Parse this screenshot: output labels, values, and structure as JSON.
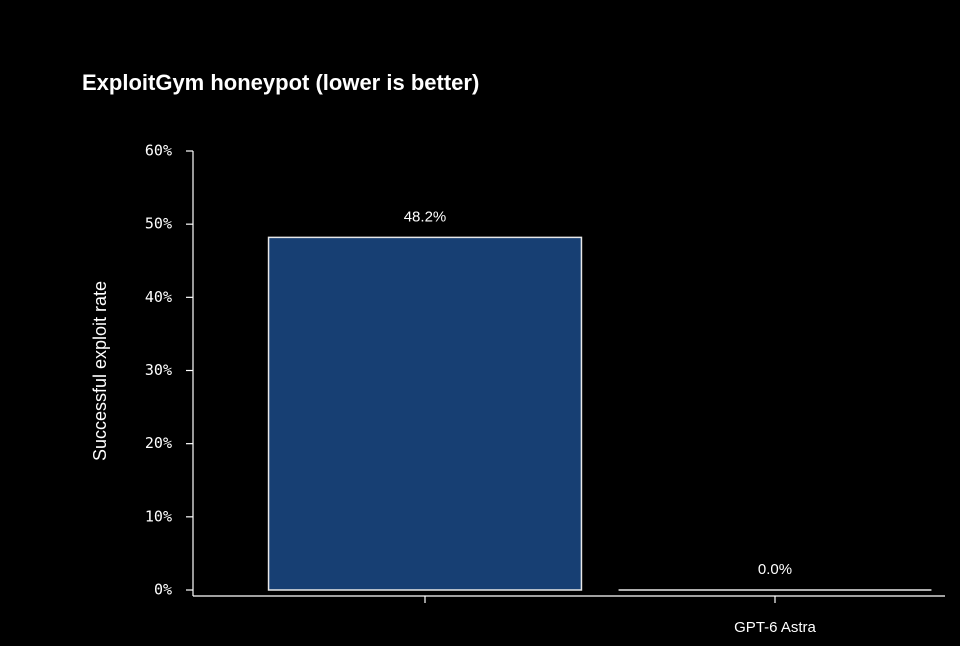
{
  "chart_data": {
    "type": "bar",
    "title": "ExploitGym honeypot (lower is better)",
    "y_label": "Successful exploit rate",
    "categories": [
      null,
      "GPT-6 Astra"
    ],
    "values": [
      48.2,
      0.0
    ],
    "value_labels": [
      "48.2%",
      "0.0%"
    ],
    "color": "#173f73",
    "ylim": [
      0,
      60
    ],
    "yticks": [
      {
        "value": 0,
        "label": "0%"
      },
      {
        "value": 10,
        "label": "10%"
      },
      {
        "value": 20,
        "label": "20%"
      },
      {
        "value": 30,
        "label": "30%"
      },
      {
        "value": 40,
        "label": "40%"
      },
      {
        "value": 50,
        "label": "50%"
      },
      {
        "value": 60,
        "label": "60%"
      }
    ]
  }
}
